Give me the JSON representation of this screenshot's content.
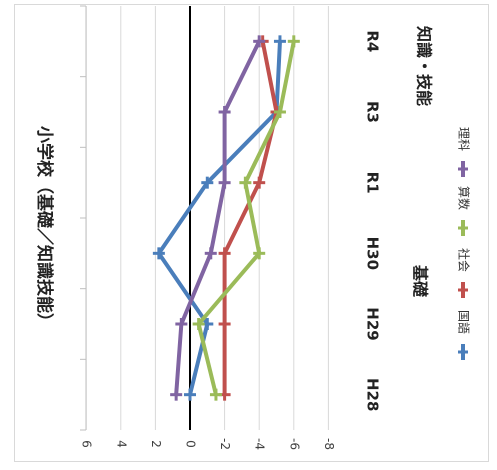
{
  "chart_data": {
    "type": "line",
    "title": "小学校（基礎／知識技能）",
    "categories": [
      "H28",
      "H29",
      "H30",
      "R1",
      "R3",
      "R4"
    ],
    "group_labels": [
      "基礎",
      "知識・技能"
    ],
    "ylim": [
      -8,
      6
    ],
    "yticks": [
      "6",
      "4",
      "2",
      "0",
      "-2",
      "-4",
      "-6",
      "-8"
    ],
    "grid": true,
    "orientation": "rotated-90-clockwise",
    "legend_position": "right",
    "series": [
      {
        "name": "国語",
        "color": "#4a7ebb",
        "values": [
          0,
          -1,
          1.8,
          -1,
          -5,
          -5.2
        ]
      },
      {
        "name": "社会",
        "color": "#c0504d",
        "values": [
          -2,
          -2,
          -2,
          -4,
          -5,
          -4.2
        ]
      },
      {
        "name": "算数",
        "color": "#9bbb59",
        "values": [
          -1.5,
          -0.5,
          -4,
          -3.2,
          -5.2,
          -6
        ]
      },
      {
        "name": "理科",
        "color": "#8064a2",
        "values": [
          0.8,
          0.5,
          -1.2,
          -2,
          -2,
          -4
        ]
      }
    ]
  }
}
